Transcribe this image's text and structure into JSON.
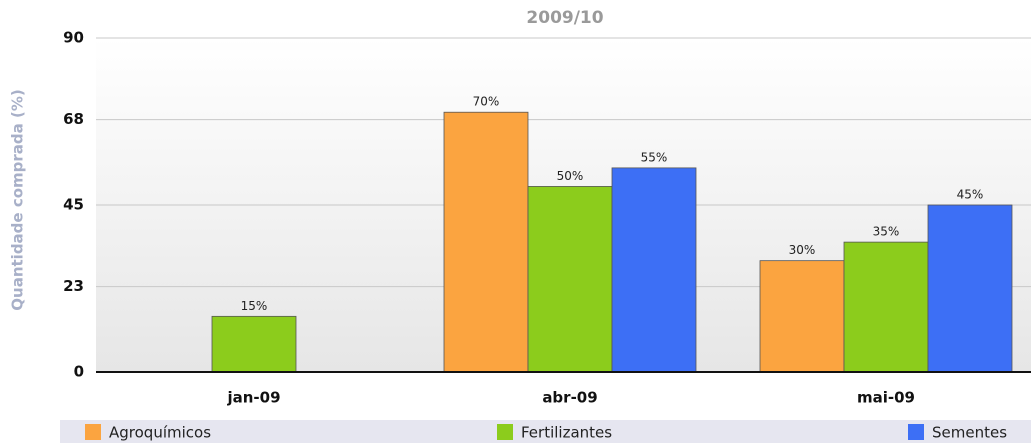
{
  "chart_data": {
    "type": "bar",
    "title": "2009/10",
    "y_label": "Quantidade comprada (%)",
    "categories": [
      "jan-09",
      "abr-09",
      "mai-09"
    ],
    "series": [
      {
        "name": "Agroquímicos",
        "color": "#fba440",
        "values": [
          null,
          70,
          30
        ],
        "value_labels": [
          null,
          "70%",
          "30%"
        ]
      },
      {
        "name": "Fertilizantes",
        "color": "#8ccc1c",
        "values": [
          15,
          50,
          35
        ],
        "value_labels": [
          "15%",
          "50%",
          "35%"
        ]
      },
      {
        "name": "Sementes",
        "color": "#3d6ff5",
        "values": [
          null,
          55,
          45
        ],
        "value_labels": [
          null,
          "55%",
          "45%"
        ]
      }
    ],
    "ylim": [
      0,
      90
    ],
    "yticks": [
      0,
      23,
      45,
      68,
      90
    ],
    "grid": true
  }
}
